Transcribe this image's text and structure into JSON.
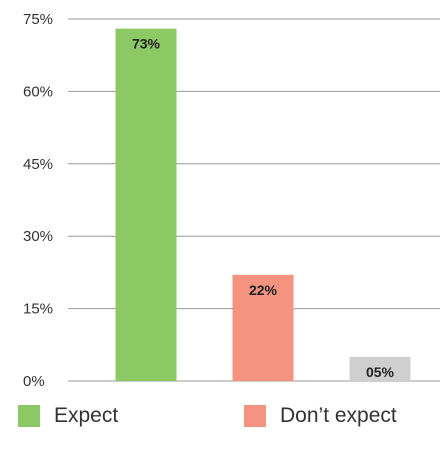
{
  "chart_data": {
    "type": "bar",
    "categories": [
      "Expect",
      "Don’t expect",
      ""
    ],
    "values": [
      73,
      22,
      5
    ],
    "value_labels": [
      "73%",
      "22%",
      "05%"
    ],
    "colors": [
      "#8cc864",
      "#f4937f",
      "#cfcfcf"
    ],
    "ylim": [
      0,
      75
    ],
    "yticks": [
      0,
      15,
      30,
      45,
      60,
      75
    ],
    "ytick_labels": [
      "0%",
      "15%",
      "30%",
      "45%",
      "60%",
      "75%"
    ],
    "grid": true,
    "legend_position": "bottom",
    "title": "",
    "xlabel": "",
    "ylabel": ""
  },
  "legend": {
    "items": [
      {
        "label": "Expect",
        "color": "#8cc864"
      },
      {
        "label": "Don’t expect",
        "color": "#f4937f"
      }
    ]
  }
}
